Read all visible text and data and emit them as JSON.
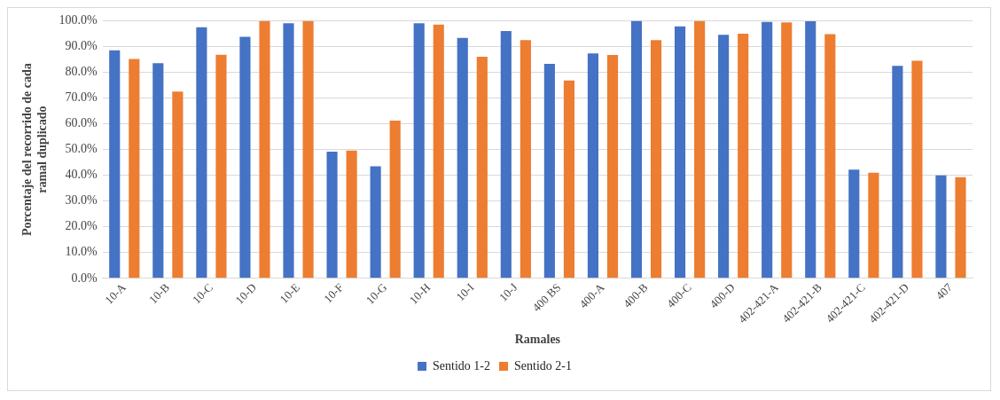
{
  "chart_data": {
    "type": "bar",
    "xlabel": "Ramales",
    "ylabel": "Porcentaje del recorrido de cada ramal duplicado",
    "categories": [
      "10-A",
      "10-B",
      "10-C",
      "10-D",
      "10-E",
      "10-F",
      "10-G",
      "10-H",
      "10-I",
      "10-J",
      "400 BS",
      "400-A",
      "400-B",
      "400-C",
      "400-D",
      "402-421-A",
      "402-421-B",
      "402-421-C",
      "402-421-D",
      "407"
    ],
    "series": [
      {
        "name": "Sentido 1-2",
        "color": "#4472c4",
        "values": [
          88.5,
          83.5,
          97.5,
          93.8,
          99,
          49.2,
          43.5,
          99,
          93.3,
          96,
          83.3,
          87.3,
          100,
          97.8,
          94.5,
          99.5,
          99.8,
          42.2,
          82.5,
          40
        ]
      },
      {
        "name": "Sentido 2-1",
        "color": "#ed7d31",
        "values": [
          85.2,
          72.5,
          86.8,
          100,
          100,
          49.6,
          61.2,
          98.5,
          86,
          92.5,
          76.8,
          86.7,
          92.5,
          100,
          95,
          99.4,
          94.8,
          41,
          84.5,
          39.3
        ]
      }
    ],
    "ylim": [
      0,
      100
    ],
    "yticks": [
      {
        "value": 0,
        "label": "0.0%"
      },
      {
        "value": 10,
        "label": "10.0%"
      },
      {
        "value": 20,
        "label": "20.0%"
      },
      {
        "value": 30,
        "label": "30.0%"
      },
      {
        "value": 40,
        "label": "40.0%"
      },
      {
        "value": 50,
        "label": "50.0%"
      },
      {
        "value": 60,
        "label": "60.0%"
      },
      {
        "value": 70,
        "label": "70.0%"
      },
      {
        "value": 80,
        "label": "80.0%"
      },
      {
        "value": 90,
        "label": "90.0%"
      },
      {
        "value": 100,
        "label": "100.0%"
      }
    ],
    "grid": "y",
    "legend": "bottom"
  }
}
